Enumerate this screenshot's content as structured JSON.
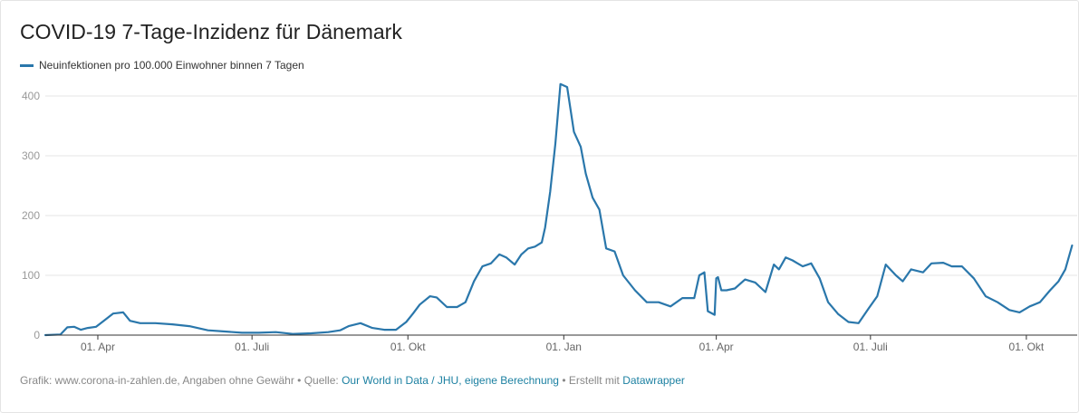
{
  "chart_data": {
    "type": "line",
    "title": "COVID-19 7-Tage-Inzidenz für Dänemark",
    "xlabel": "",
    "ylabel": "",
    "ylim": [
      0,
      430
    ],
    "yticks": [
      0,
      100,
      200,
      300,
      400
    ],
    "grid": "horizontal",
    "legend": "top-left",
    "xlim": [
      "2020-03-01",
      "2021-10-31"
    ],
    "xticks": [
      {
        "date": "2020-04-01",
        "label": "01. Apr"
      },
      {
        "date": "2020-07-01",
        "label": "01. Juli"
      },
      {
        "date": "2020-10-01",
        "label": "01. Okt"
      },
      {
        "date": "2021-01-01",
        "label": "01. Jan"
      },
      {
        "date": "2021-04-01",
        "label": "01. Apr"
      },
      {
        "date": "2021-07-01",
        "label": "01. Juli"
      },
      {
        "date": "2021-10-01",
        "label": "01. Okt"
      }
    ],
    "series": [
      {
        "name": "Neuinfektionen pro 100.000 Einwohner binnen 7 Tagen",
        "color": "#2a77ab",
        "x": [
          "2020-03-01",
          "2020-03-10",
          "2020-03-14",
          "2020-03-18",
          "2020-03-22",
          "2020-03-26",
          "2020-03-31",
          "2020-04-05",
          "2020-04-10",
          "2020-04-16",
          "2020-04-20",
          "2020-04-26",
          "2020-05-05",
          "2020-05-15",
          "2020-05-25",
          "2020-06-05",
          "2020-06-15",
          "2020-06-25",
          "2020-07-05",
          "2020-07-15",
          "2020-07-25",
          "2020-08-05",
          "2020-08-15",
          "2020-08-22",
          "2020-08-27",
          "2020-09-03",
          "2020-09-10",
          "2020-09-17",
          "2020-09-24",
          "2020-09-30",
          "2020-10-04",
          "2020-10-08",
          "2020-10-14",
          "2020-10-18",
          "2020-10-24",
          "2020-10-30",
          "2020-11-04",
          "2020-11-09",
          "2020-11-14",
          "2020-11-19",
          "2020-11-24",
          "2020-11-28",
          "2020-12-03",
          "2020-12-07",
          "2020-12-11",
          "2020-12-15",
          "2020-12-19",
          "2020-12-21",
          "2020-12-24",
          "2020-12-27",
          "2020-12-30",
          "2021-01-03",
          "2021-01-07",
          "2021-01-11",
          "2021-01-14",
          "2021-01-18",
          "2021-01-22",
          "2021-01-26",
          "2021-01-31",
          "2021-02-05",
          "2021-02-12",
          "2021-02-19",
          "2021-02-26",
          "2021-03-05",
          "2021-03-12",
          "2021-03-16",
          "2021-03-19",
          "2021-03-22",
          "2021-03-25",
          "2021-03-27",
          "2021-03-31",
          "2021-04-01",
          "2021-04-02",
          "2021-04-04",
          "2021-04-07",
          "2021-04-12",
          "2021-04-18",
          "2021-04-24",
          "2021-04-30",
          "2021-05-05",
          "2021-05-08",
          "2021-05-12",
          "2021-05-16",
          "2021-05-19",
          "2021-05-22",
          "2021-05-27",
          "2021-06-01",
          "2021-06-06",
          "2021-06-12",
          "2021-06-18",
          "2021-06-24",
          "2021-06-30",
          "2021-07-05",
          "2021-07-10",
          "2021-07-16",
          "2021-07-20",
          "2021-07-25",
          "2021-08-01",
          "2021-08-06",
          "2021-08-13",
          "2021-08-18",
          "2021-08-24",
          "2021-08-31",
          "2021-09-07",
          "2021-09-14",
          "2021-09-21",
          "2021-09-27",
          "2021-10-03",
          "2021-10-09",
          "2021-10-15",
          "2021-10-20",
          "2021-10-24",
          "2021-10-28"
        ],
        "values": [
          0,
          1,
          13,
          14,
          9,
          12,
          14,
          25,
          36,
          38,
          24,
          20,
          20,
          18,
          15,
          8,
          6,
          4,
          4,
          5,
          2,
          3,
          5,
          8,
          15,
          20,
          12,
          9,
          9,
          22,
          36,
          51,
          65,
          63,
          47,
          47,
          55,
          90,
          115,
          120,
          135,
          130,
          118,
          135,
          145,
          148,
          155,
          180,
          240,
          320,
          420,
          415,
          340,
          315,
          270,
          230,
          210,
          145,
          140,
          100,
          75,
          55,
          55,
          48,
          62,
          62,
          62,
          100,
          105,
          40,
          34,
          95,
          97,
          75,
          75,
          78,
          93,
          88,
          72,
          118,
          110,
          130,
          125,
          120,
          115,
          120,
          95,
          55,
          35,
          22,
          20,
          45,
          65,
          118,
          100,
          90,
          110,
          105,
          120,
          121,
          115,
          115,
          95,
          65,
          55,
          42,
          38,
          48,
          55,
          75,
          90,
          110,
          150
        ]
      }
    ]
  },
  "footer": {
    "prefix": "Grafik: www.corona-in-zahlen.de, Angaben ohne Gewähr • Quelle: ",
    "source_link": "Our World in Data / JHU, eigene Berechnung",
    "middle": " • Erstellt mit ",
    "tool_link": "Datawrapper"
  }
}
